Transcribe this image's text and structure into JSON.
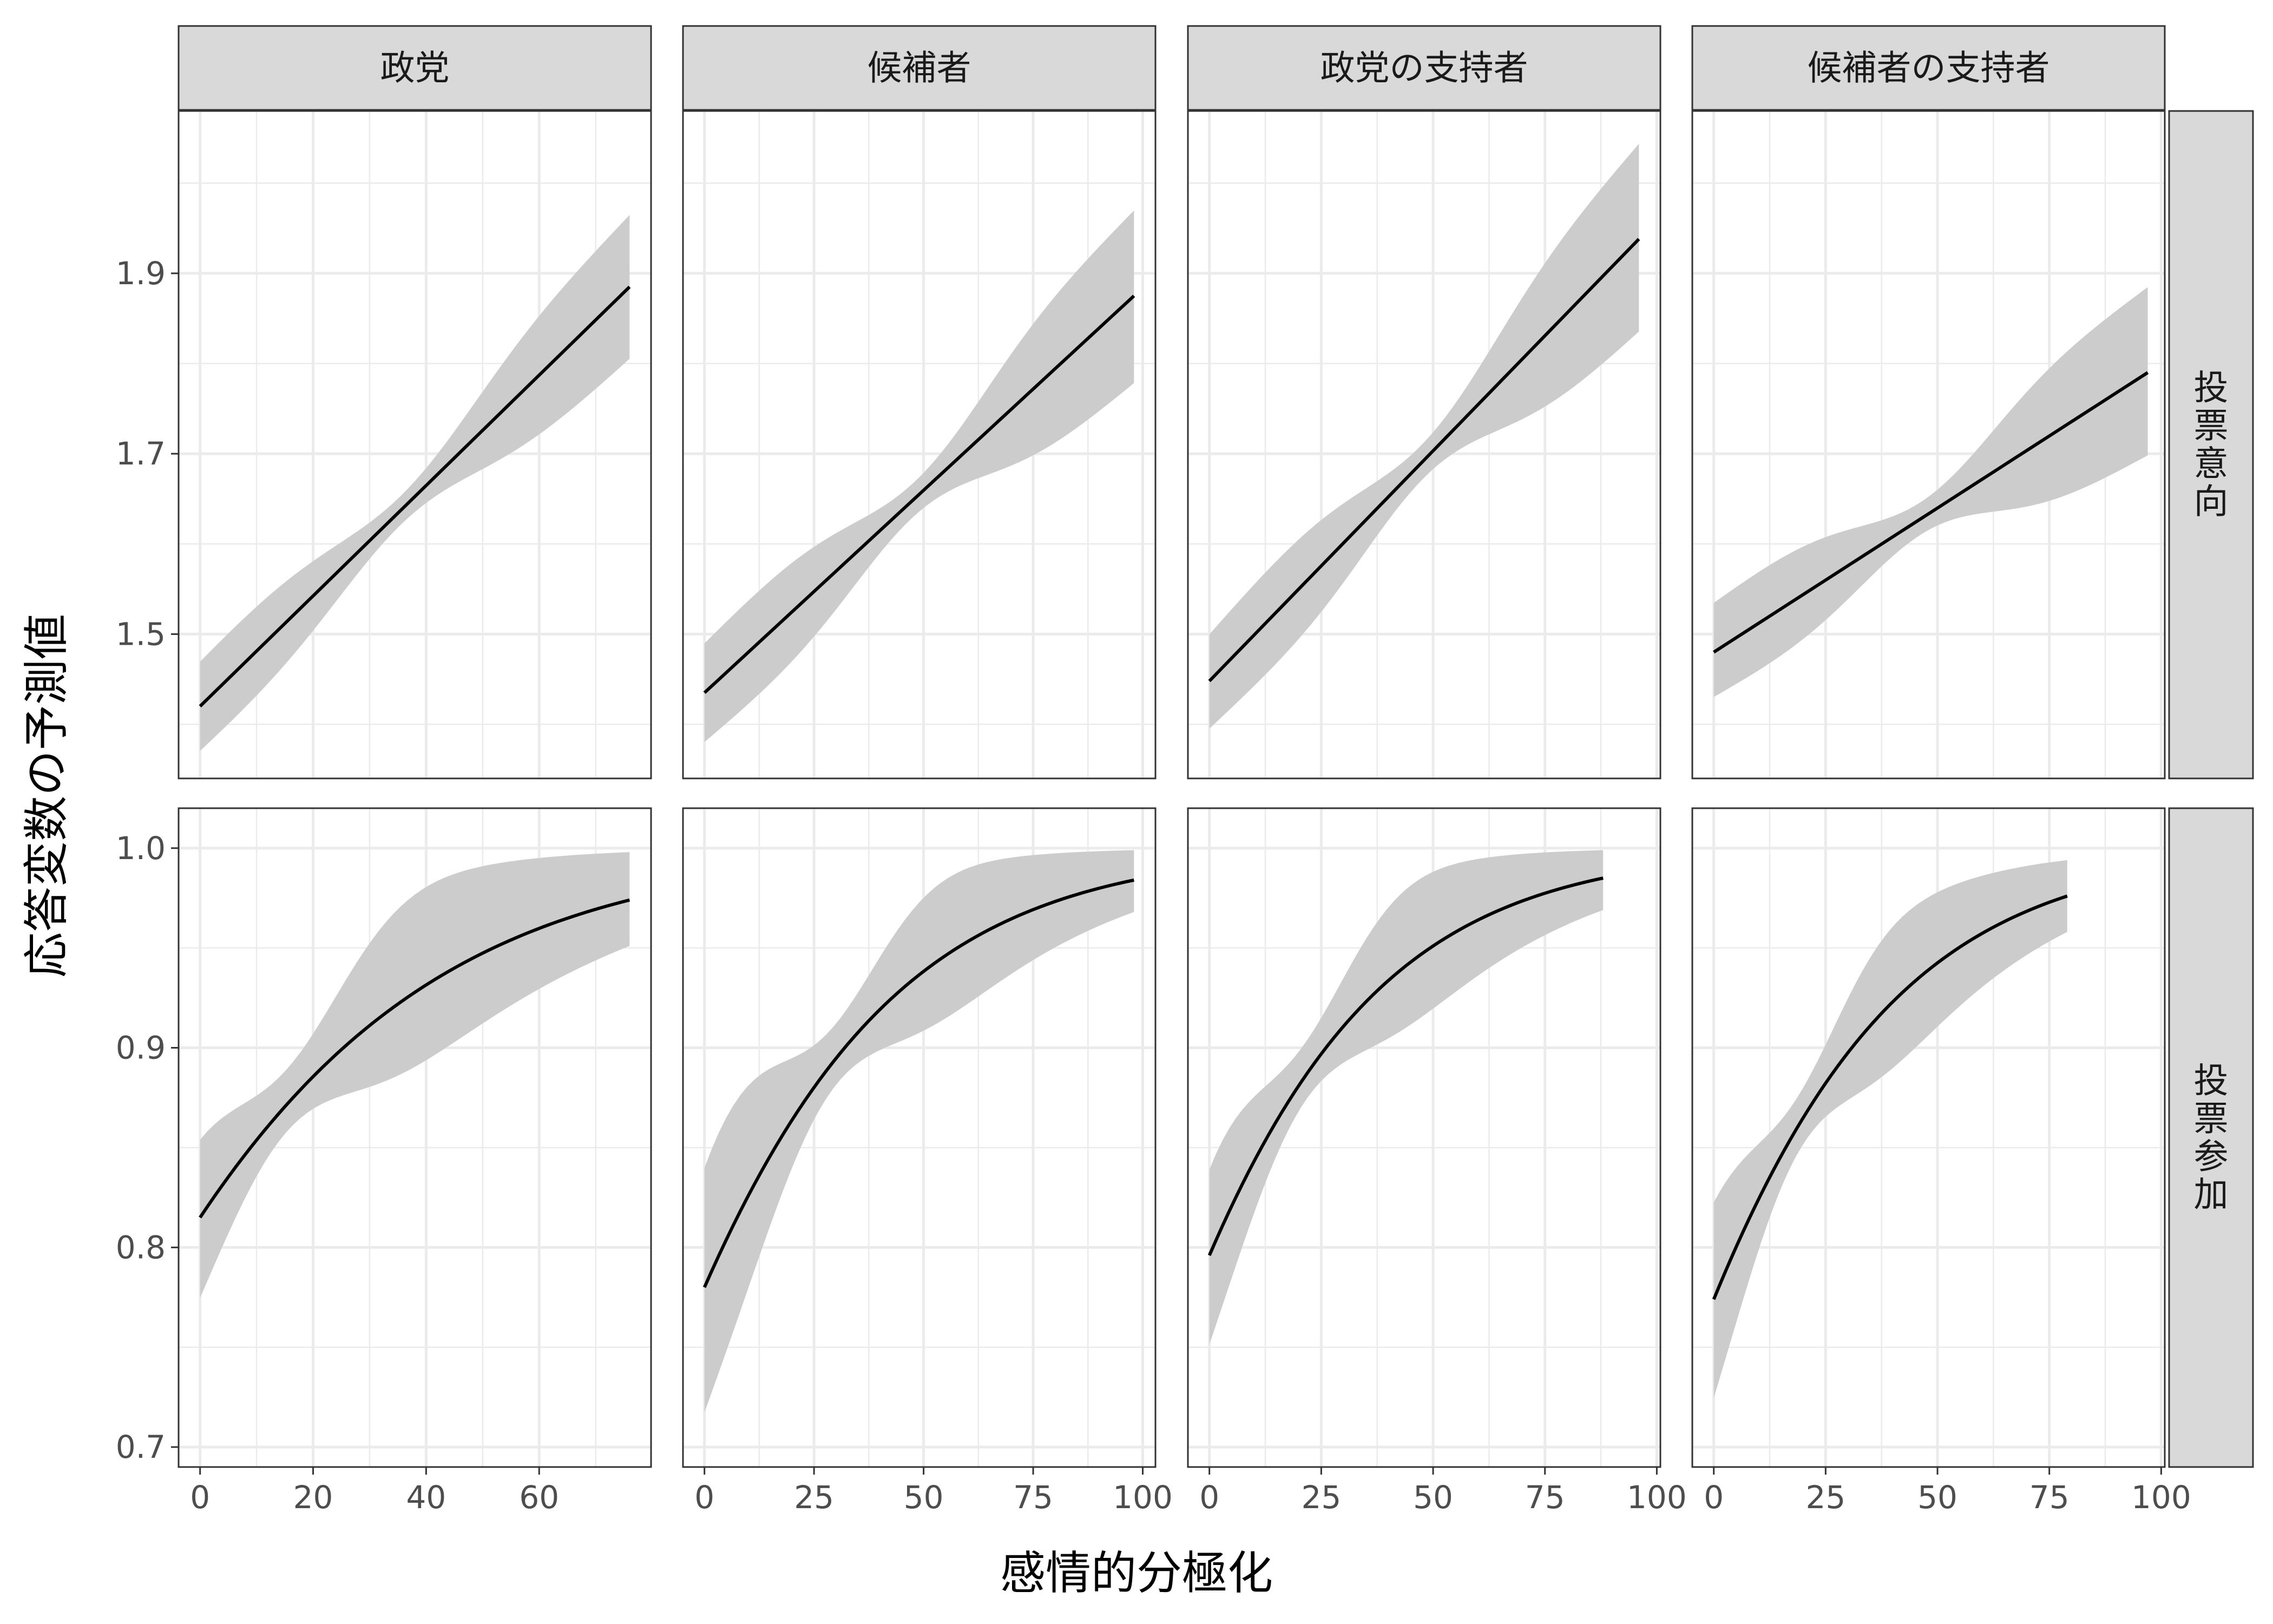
{
  "chart_data": {
    "type": "line",
    "facet_layout": "grid",
    "grid": true,
    "legend": "none",
    "xlabel": "感情的分極化",
    "ylabel": "応答変数の予測値",
    "colors": {
      "line": "#000000",
      "ribbon": "#cccccc",
      "strip_fill": "#d9d9d9",
      "strip_border": "#333333",
      "grid": "#ebebeb",
      "panel_border": "#333333",
      "axis_text": "#4d4d4d",
      "axis_title": "#000000"
    },
    "columns": [
      "政党",
      "候補者",
      "政党の支持者",
      "候補者の支持者"
    ],
    "rows": [
      {
        "label": "投票意向",
        "ylim": [
          1.34,
          2.08
        ],
        "yticks": [
          1.5,
          1.7,
          1.9
        ],
        "ytick_labels": [
          "1.5",
          "1.7",
          "1.9"
        ],
        "ygrid_minor": [
          1.4,
          1.6,
          1.8,
          2.0
        ]
      },
      {
        "label": "投票参加",
        "ylim": [
          0.69,
          1.02
        ],
        "yticks": [
          0.7,
          0.8,
          0.9,
          1.0
        ],
        "ytick_labels": [
          "0.7",
          "0.8",
          "0.9",
          "1.0"
        ],
        "ygrid_minor": [
          0.75,
          0.85,
          0.95
        ]
      }
    ],
    "x_axes": [
      {
        "xlim": [
          -3.8,
          79.8
        ],
        "xticks": [
          0,
          20,
          40,
          60
        ],
        "xtick_labels": [
          "0",
          "20",
          "40",
          "60"
        ],
        "xgrid_minor": [
          10,
          30,
          50,
          70
        ]
      },
      {
        "xlim": [
          -4.9,
          102.9
        ],
        "xticks": [
          0,
          25,
          50,
          75,
          100
        ],
        "xtick_labels": [
          "0",
          "25",
          "50",
          "75",
          "100"
        ],
        "xgrid_minor": [
          12.5,
          37.5,
          62.5,
          87.5
        ]
      },
      {
        "xlim": [
          -4.8,
          100.8
        ],
        "xticks": [
          0,
          25,
          50,
          75,
          100
        ],
        "xtick_labels": [
          "0",
          "25",
          "50",
          "75",
          "100"
        ],
        "xgrid_minor": [
          12.5,
          37.5,
          62.5,
          87.5
        ]
      },
      {
        "xlim": [
          -4.8,
          100.8
        ],
        "xticks": [
          0,
          25,
          50,
          75,
          100
        ],
        "xtick_labels": [
          "0",
          "25",
          "50",
          "75",
          "100"
        ],
        "xgrid_minor": [
          12.5,
          37.5,
          62.5,
          87.5
        ]
      }
    ],
    "panels": [
      {
        "row": 0,
        "col": 0,
        "shape": "linear",
        "x": [
          0,
          76
        ],
        "y": [
          1.42,
          1.885
        ],
        "lower": [
          1.37,
          1.805
        ],
        "upper": [
          1.47,
          1.965
        ],
        "tight": [
          0.47,
          0.52
        ]
      },
      {
        "row": 0,
        "col": 1,
        "shape": "linear",
        "x": [
          0,
          98
        ],
        "y": [
          1.435,
          1.875
        ],
        "lower": [
          1.38,
          1.778
        ],
        "upper": [
          1.49,
          1.97
        ],
        "tight": [
          0.49,
          0.53
        ]
      },
      {
        "row": 0,
        "col": 2,
        "shape": "linear",
        "x": [
          0,
          96
        ],
        "y": [
          1.448,
          1.938
        ],
        "lower": [
          1.395,
          1.835
        ],
        "upper": [
          1.5,
          2.044
        ],
        "tight": [
          0.5,
          0.54
        ]
      },
      {
        "row": 0,
        "col": 3,
        "shape": "linear",
        "x": [
          0,
          97
        ],
        "y": [
          1.48,
          1.79
        ],
        "lower": [
          1.43,
          1.698
        ],
        "upper": [
          1.535,
          1.885
        ],
        "tight": [
          0.48,
          0.52
        ]
      },
      {
        "row": 1,
        "col": 0,
        "shape": "logistic",
        "x": [
          0,
          76
        ],
        "y": [
          0.815,
          0.974
        ],
        "lower": [
          0.755,
          0.951
        ],
        "upper": [
          0.873,
          0.998
        ],
        "tight": [
          0.2,
          0.24
        ]
      },
      {
        "row": 1,
        "col": 1,
        "shape": "logistic",
        "x": [
          0,
          98
        ],
        "y": [
          0.78,
          0.984
        ],
        "lower": [
          0.712,
          0.968
        ],
        "upper": [
          0.845,
          0.999
        ],
        "tight": [
          0.3,
          0.32
        ]
      },
      {
        "row": 1,
        "col": 2,
        "shape": "logistic",
        "x": [
          0,
          88
        ],
        "y": [
          0.796,
          0.985
        ],
        "lower": [
          0.74,
          0.969
        ],
        "upper": [
          0.85,
          0.999
        ],
        "tight": [
          0.24,
          0.27
        ]
      },
      {
        "row": 1,
        "col": 3,
        "shape": "logistic",
        "x": [
          0,
          79
        ],
        "y": [
          0.774,
          0.976
        ],
        "lower": [
          0.712,
          0.958
        ],
        "upper": [
          0.835,
          0.994
        ],
        "tight": [
          0.24,
          0.27
        ]
      }
    ]
  }
}
